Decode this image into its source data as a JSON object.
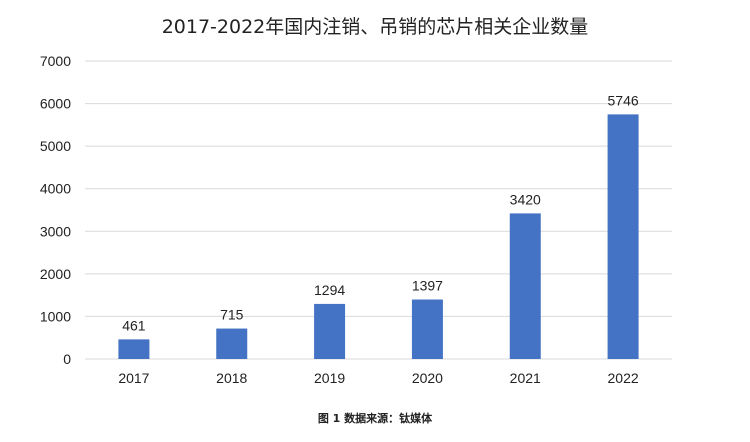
{
  "chart_data": {
    "type": "bar",
    "title": "2017-2022年国内注销、吊销的芯片相关企业数量",
    "categories": [
      "2017",
      "2018",
      "2019",
      "2020",
      "2021",
      "2022"
    ],
    "values": [
      461,
      715,
      1294,
      1397,
      3420,
      5746
    ],
    "ylim": [
      0,
      7000
    ],
    "yticks": [
      0,
      1000,
      2000,
      3000,
      4000,
      5000,
      6000,
      7000
    ],
    "grid": true,
    "legend": "none",
    "bar_color": "#4472C4",
    "grid_color": "#d9d9d9"
  },
  "caption": "图 1  数据来源：钛媒体"
}
